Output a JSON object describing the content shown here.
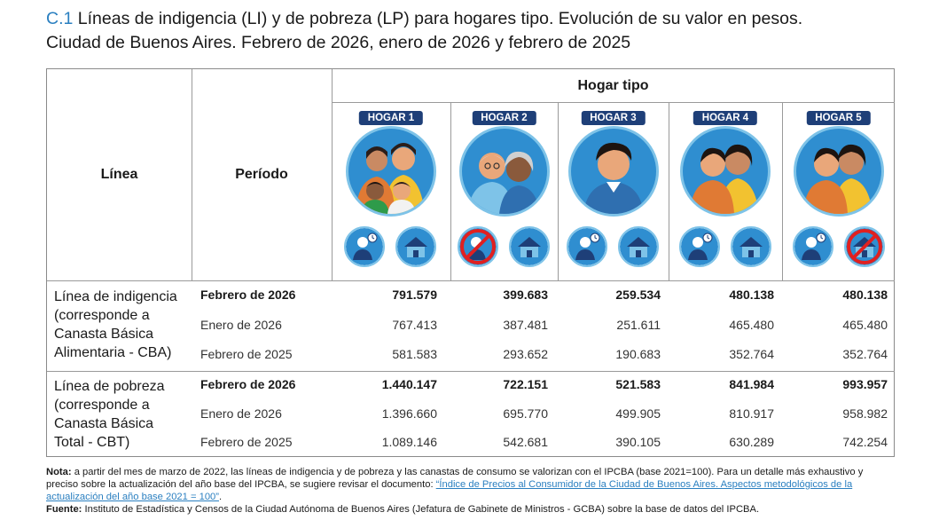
{
  "title": {
    "code": "C.1",
    "line1": "Líneas de indigencia (LI) y de pobreza (LP) para hogares tipo. Evolución de su valor en pesos.",
    "line2": "Ciudad de Buenos Aires. Febrero de 2026, enero de 2026 y febrero de 2025"
  },
  "header": {
    "linea": "Línea",
    "periodo": "Período",
    "hogar_tipo": "Hogar tipo",
    "hogares": [
      "HOGAR 1",
      "HOGAR 2",
      "HOGAR 3",
      "HOGAR 4",
      "HOGAR 5"
    ]
  },
  "icons": [
    {
      "people": "family-four-icon",
      "work": "worker-icon",
      "home": "house-icon"
    },
    {
      "people": "elderly-couple-icon",
      "work": "no-worker-icon",
      "home": "house-icon"
    },
    {
      "people": "single-man-icon",
      "work": "worker-icon",
      "home": "house-icon"
    },
    {
      "people": "young-couple-icon",
      "work": "worker-icon",
      "home": "house-icon"
    },
    {
      "people": "young-couple-icon",
      "work": "worker-icon",
      "home": "no-house-icon"
    }
  ],
  "sections": [
    {
      "label_lines": [
        "Línea de indigencia",
        "(corresponde a",
        "Canasta Básica",
        "Alimentaria - CBA)"
      ],
      "rows": [
        {
          "period": "Febrero de 2026",
          "bold": true,
          "values": [
            "791.579",
            "399.683",
            "259.534",
            "480.138",
            "480.138"
          ]
        },
        {
          "period": "Enero de 2026",
          "bold": false,
          "values": [
            "767.413",
            "387.481",
            "251.611",
            "465.480",
            "465.480"
          ]
        },
        {
          "period": "Febrero de 2025",
          "bold": false,
          "values": [
            "581.583",
            "293.652",
            "190.683",
            "352.764",
            "352.764"
          ]
        }
      ]
    },
    {
      "label_lines": [
        "Línea de pobreza",
        "(corresponde a",
        "Canasta Básica",
        "Total - CBT)"
      ],
      "rows": [
        {
          "period": "Febrero de 2026",
          "bold": true,
          "values": [
            "1.440.147",
            "722.151",
            "521.583",
            "841.984",
            "993.957"
          ]
        },
        {
          "period": "Enero de 2026",
          "bold": false,
          "values": [
            "1.396.660",
            "695.770",
            "499.905",
            "810.917",
            "958.982"
          ]
        },
        {
          "period": "Febrero de 2025",
          "bold": false,
          "values": [
            "1.089.146",
            "542.681",
            "390.105",
            "630.289",
            "742.254"
          ]
        }
      ]
    }
  ],
  "note": {
    "label": "Nota:",
    "text1": " a partir del mes de marzo de 2022, las líneas de indigencia y de pobreza y las canastas de consumo se valorizan con el IPCBA (base 2021=100). Para un detalle más exhaustivo y preciso sobre la actualización del año base del IPCBA, se sugiere revisar el documento: ",
    "link": "“Índice de Precios al Consumidor de la Ciudad de Buenos Aires. Aspectos metodológicos de la actualización del año base 2021 = 100”",
    "text2": ".",
    "source_label": "Fuente:",
    "source_text": " Instituto de Estadística y Censos de la Ciudad Autónoma de Buenos Aires (Jefatura de Gabinete de Ministros - GCBA) sobre la base de datos del IPCBA."
  }
}
